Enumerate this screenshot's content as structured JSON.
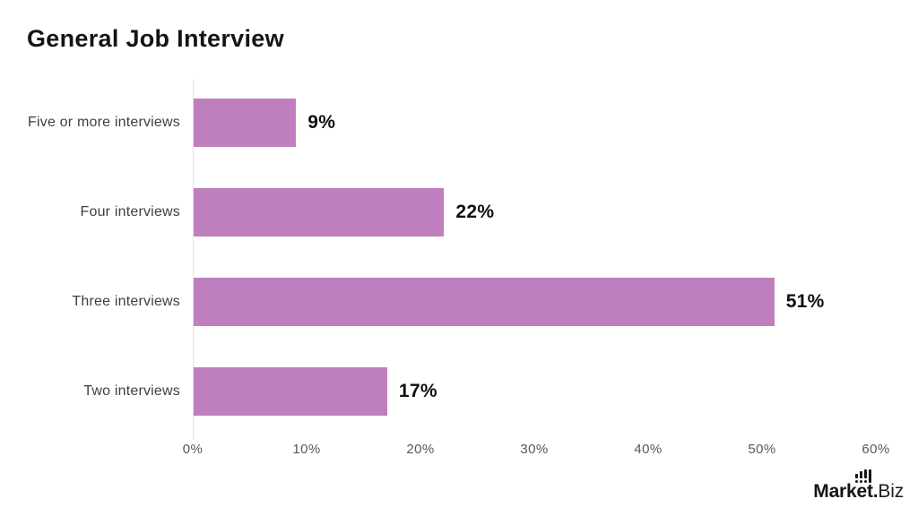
{
  "title": "General Job Interview",
  "chart_data": {
    "type": "bar",
    "orientation": "horizontal",
    "title": "General Job Interview",
    "categories": [
      "Five or more interviews",
      "Four interviews",
      "Three interviews",
      "Two interviews"
    ],
    "values": [
      9,
      22,
      51,
      17
    ],
    "value_labels": [
      "9%",
      "22%",
      "51%",
      "17%"
    ],
    "xlabel": "",
    "ylabel": "",
    "xlim": [
      0,
      60
    ],
    "x_ticks": [
      "0%",
      "10%",
      "20%",
      "30%",
      "40%",
      "50%",
      "60%"
    ],
    "x_tick_values": [
      0,
      10,
      20,
      30,
      40,
      50,
      60
    ],
    "grid": false,
    "legend_position": "none",
    "bar_color": "#bf7ebd",
    "value_label_color": "#0f0f0f",
    "category_label_color": "#3f3f3f",
    "tick_label_color": "#575757",
    "axis_line_color": "#e2e2e2"
  },
  "branding": {
    "logo_bold": "Market.",
    "logo_light": "Biz",
    "logo_icon": "bar-chart-icon"
  }
}
